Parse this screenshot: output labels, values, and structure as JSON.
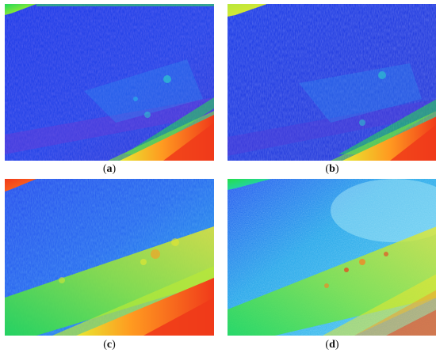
{
  "figure": {
    "panels": [
      {
        "id": "a",
        "caption_open": "(",
        "caption_letter": "a",
        "caption_close": ")"
      },
      {
        "id": "b",
        "caption_open": "(",
        "caption_letter": "b",
        "caption_close": ")"
      },
      {
        "id": "c",
        "caption_open": "(",
        "caption_letter": "c",
        "caption_close": ")"
      },
      {
        "id": "d",
        "caption_open": "(",
        "caption_letter": "d",
        "caption_close": ")"
      }
    ],
    "colors": {
      "deep_blue": "#1a2ee0",
      "blue": "#2a55f0",
      "violet": "#6a3ad8",
      "cyan": "#28c8e8",
      "green": "#22e04a",
      "yellow": "#e8e830",
      "orange": "#ff8a1e",
      "red": "#f03a1a"
    }
  }
}
